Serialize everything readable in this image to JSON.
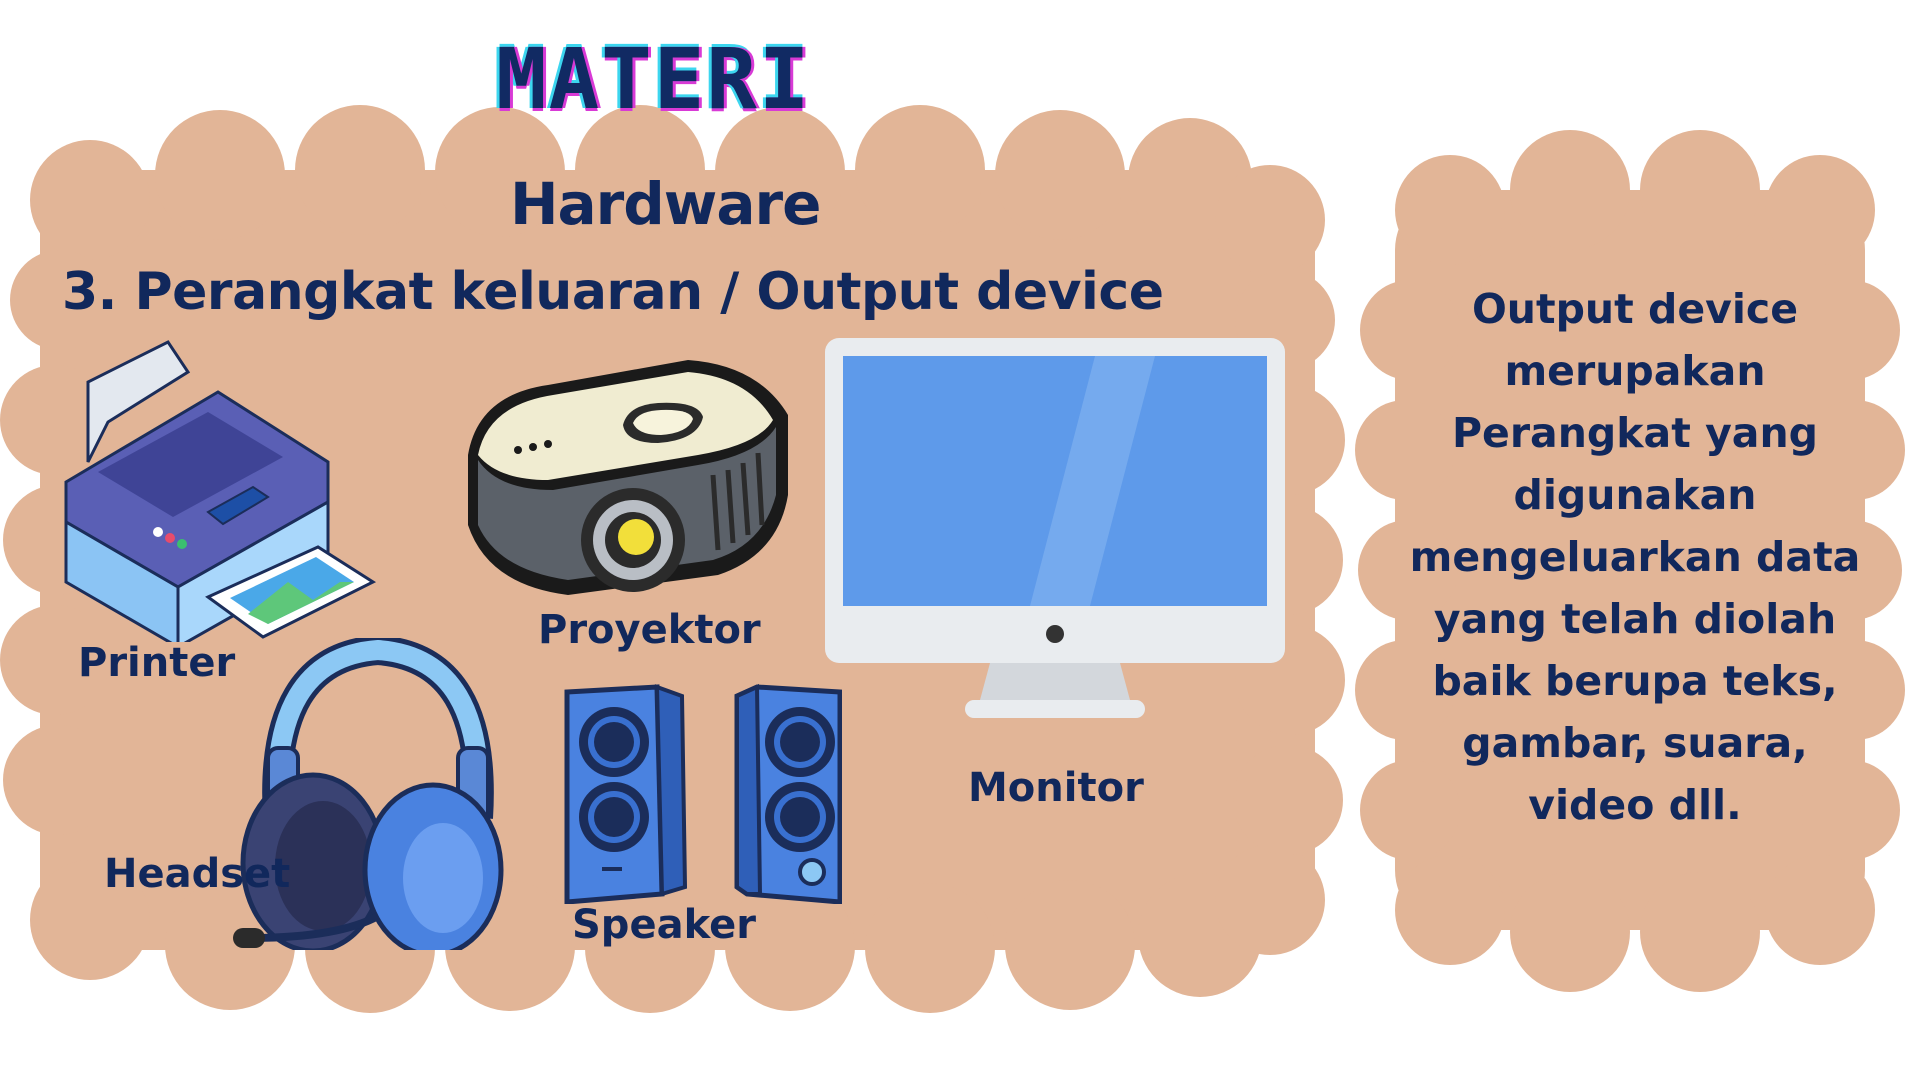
{
  "page": {
    "title": "MATERI"
  },
  "main_panel": {
    "heading": "Hardware",
    "subheading": "3. Perangkat keluaran / Output device",
    "devices": [
      {
        "label": "Printer",
        "icon": "printer-icon"
      },
      {
        "label": "Proyektor",
        "icon": "projector-icon"
      },
      {
        "label": "Monitor",
        "icon": "monitor-icon"
      },
      {
        "label": "Headset",
        "icon": "headset-icon"
      },
      {
        "label": "Speaker",
        "icon": "speaker-icon"
      }
    ]
  },
  "side_panel": {
    "definition": "Output device merupakan Perangkat yang digunakan mengeluarkan data yang telah diolah baik berupa teks, gambar, suara, video dll."
  },
  "colors": {
    "background": "#ffffff",
    "panel": "#e2b597",
    "text": "#11285c",
    "monitor_screen": "#5e9aea",
    "projector_body": "#f0ecd1",
    "printer_body": "#8bc4f4",
    "speaker": "#4a82e0"
  }
}
